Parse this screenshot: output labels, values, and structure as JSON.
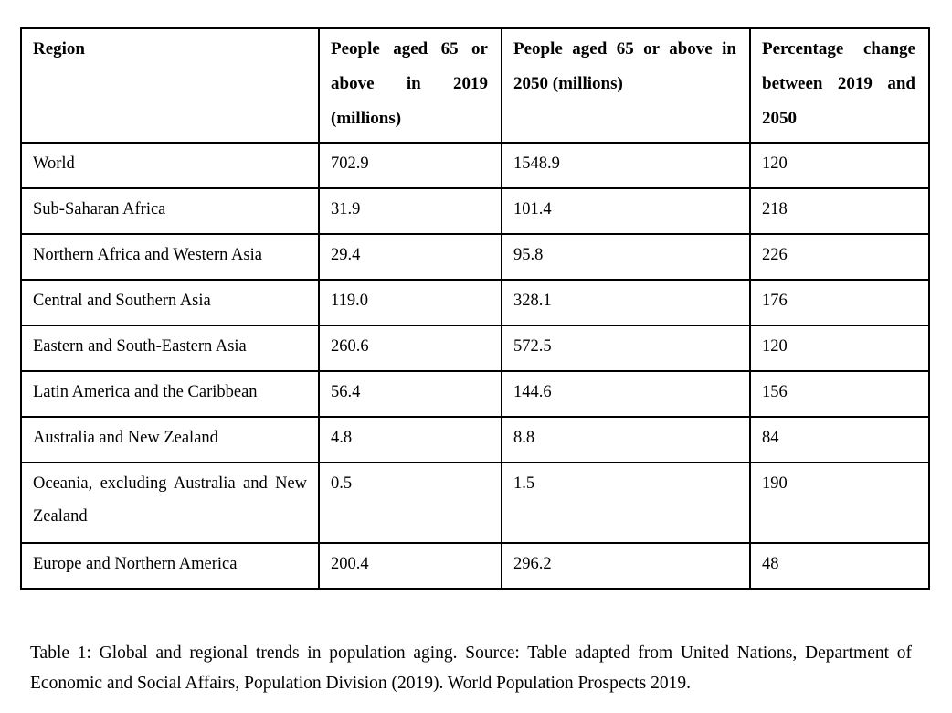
{
  "document": {
    "background_color": "#ffffff",
    "text_color": "#000000",
    "table_border_color": "#000000"
  },
  "table": {
    "headers": [
      "Region",
      "People aged 65 or above in 2019 (millions)",
      "People aged 65 or above in 2050 (millions)",
      "Percentage change between 2019 and 2050"
    ],
    "rows": [
      {
        "region": "World",
        "aged_65_2019_millions": "702.9",
        "aged_65_2050_millions": "1548.9",
        "percentage_change": "120"
      },
      {
        "region": "Sub-Saharan Africa",
        "aged_65_2019_millions": "31.9",
        "aged_65_2050_millions": "101.4",
        "percentage_change": "218"
      },
      {
        "region": "Northern Africa and Western Asia",
        "aged_65_2019_millions": "29.4",
        "aged_65_2050_millions": "95.8",
        "percentage_change": "226"
      },
      {
        "region": "Central and Southern Asia",
        "aged_65_2019_millions": "119.0",
        "aged_65_2050_millions": "328.1",
        "percentage_change": "176"
      },
      {
        "region": "Eastern and South-Eastern Asia",
        "aged_65_2019_millions": "260.6",
        "aged_65_2050_millions": "572.5",
        "percentage_change": "120"
      },
      {
        "region": "Latin America and the Caribbean",
        "aged_65_2019_millions": "56.4",
        "aged_65_2050_millions": "144.6",
        "percentage_change": "156"
      },
      {
        "region": "Australia and New Zealand",
        "aged_65_2019_millions": "4.8",
        "aged_65_2050_millions": "8.8",
        "percentage_change": "84"
      },
      {
        "region": "Oceania, excluding Australia and New Zealand",
        "aged_65_2019_millions": "0.5",
        "aged_65_2050_millions": "1.5",
        "percentage_change": "190"
      },
      {
        "region": "Europe and Northern America",
        "aged_65_2019_millions": "200.4",
        "aged_65_2050_millions": "296.2",
        "percentage_change": "48"
      }
    ]
  },
  "caption": {
    "text": "Table 1: Global and regional trends in population aging. Source: Table adapted from United Nations, Department of Economic and Social Affairs, Population Division (2019). World Population Prospects 2019."
  }
}
